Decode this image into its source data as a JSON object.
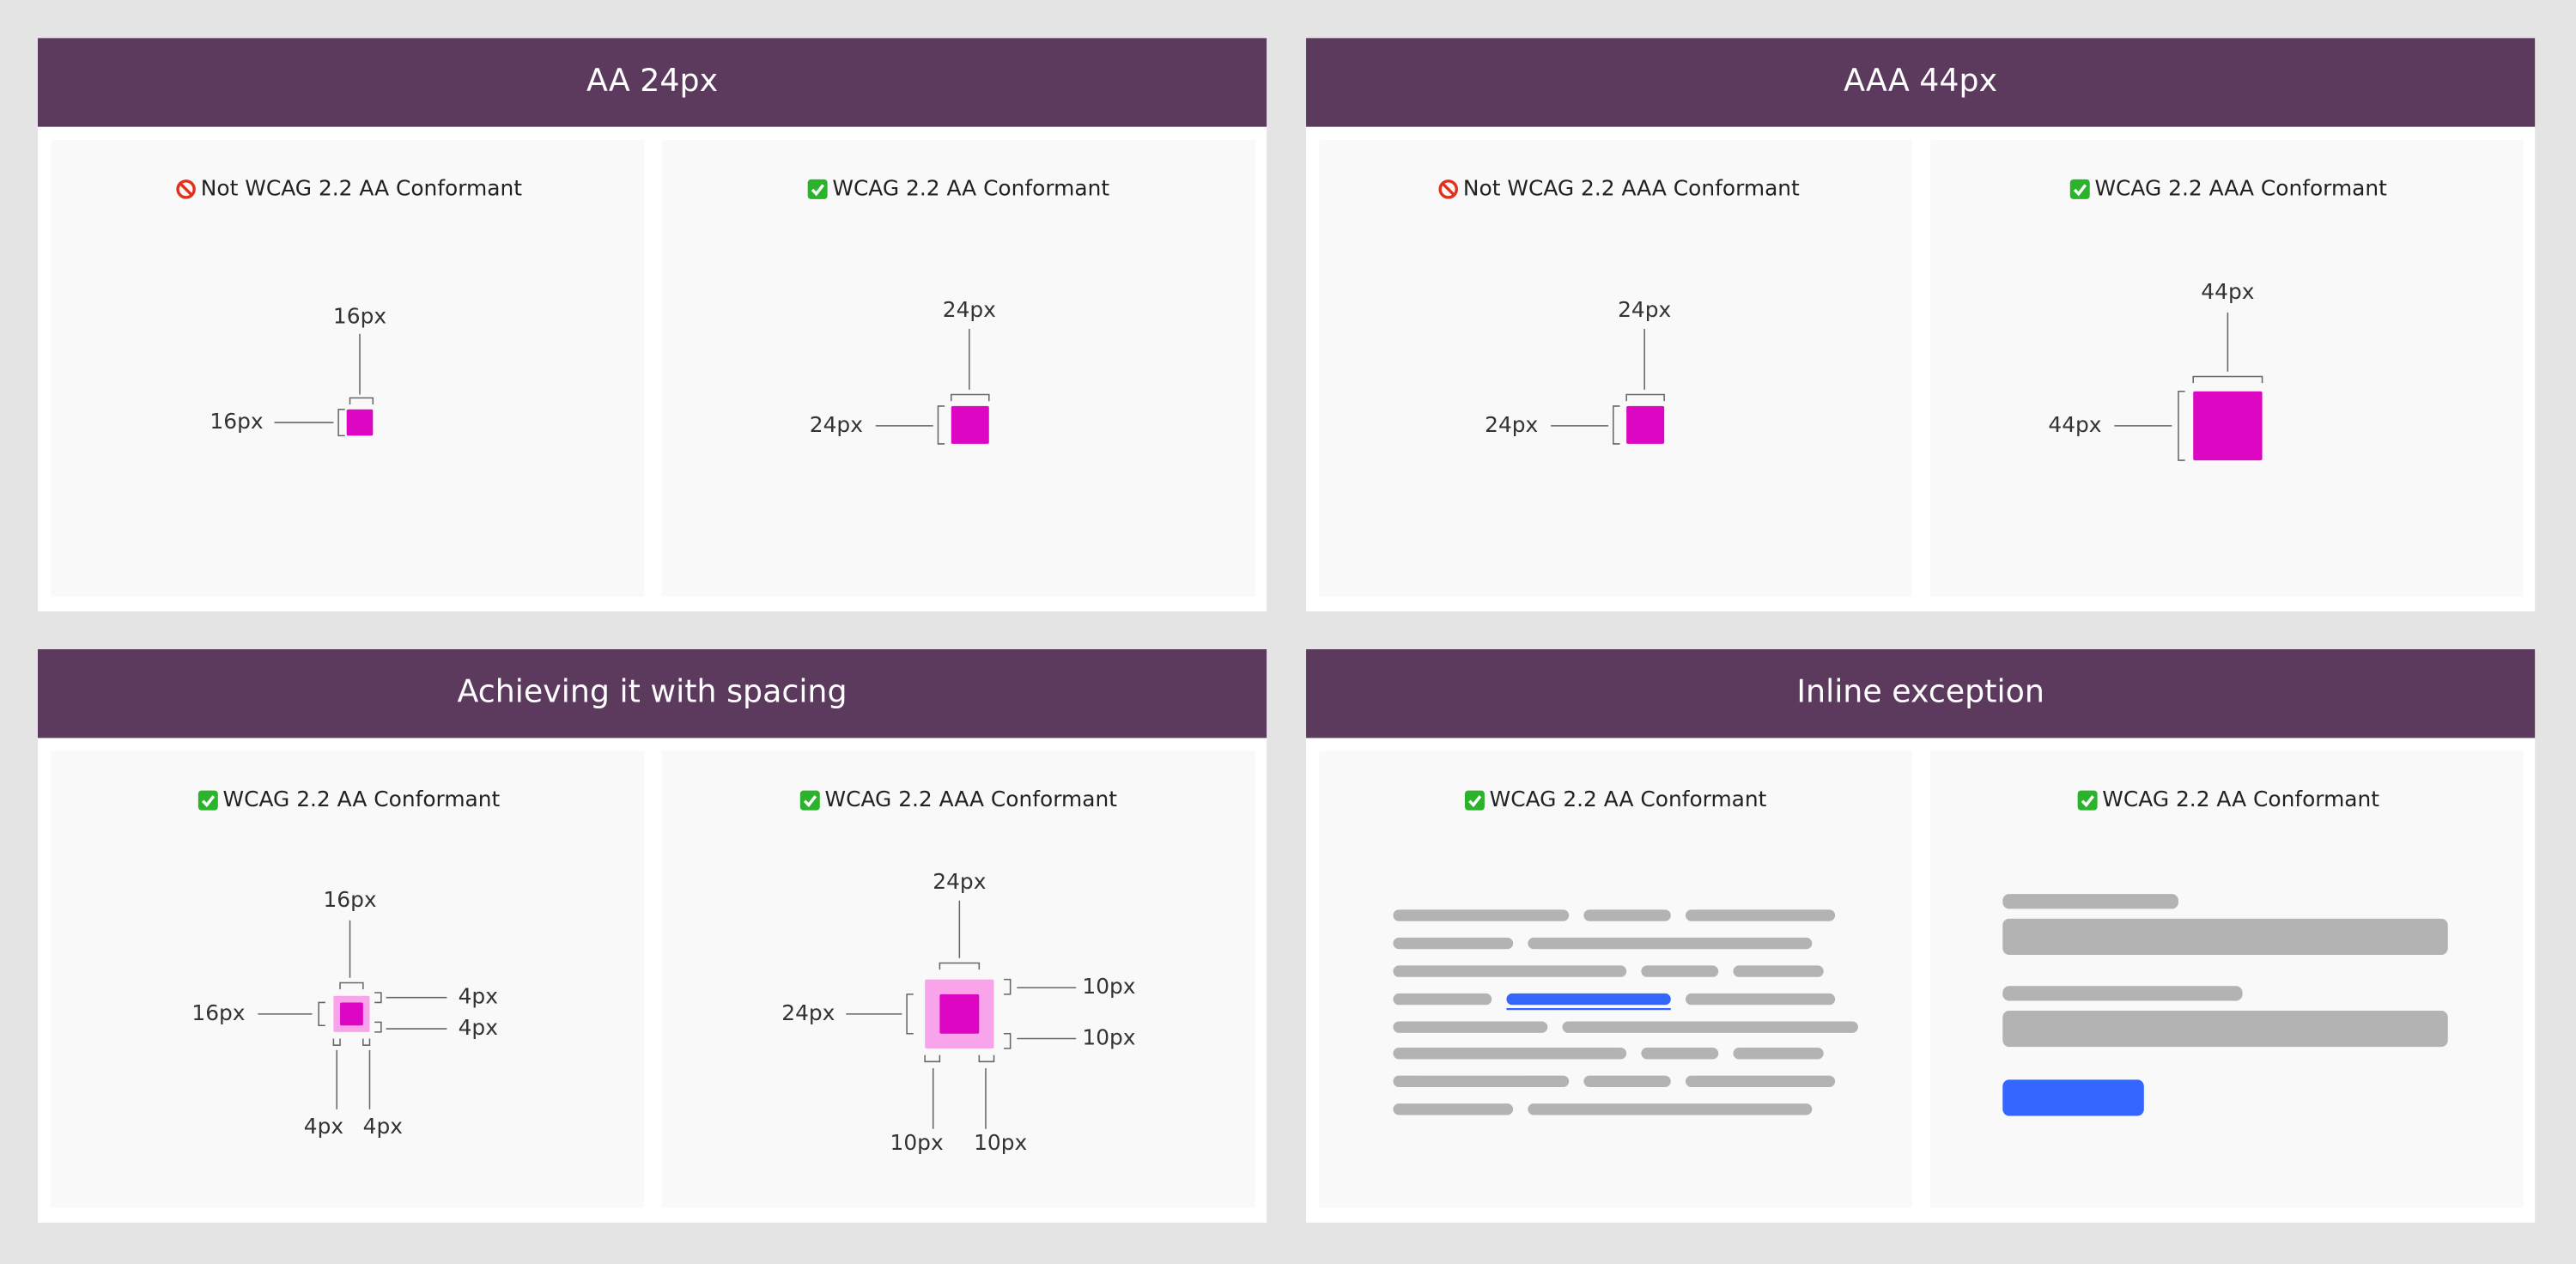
{
  "panels": [
    {
      "title": "AA 24px",
      "cards": [
        {
          "heading": "Not WCAG 2.2 AA Conformant",
          "labels": [
            "16px",
            "16px"
          ]
        },
        {
          "heading": "WCAG 2.2 AA Conformant",
          "labels": [
            "24px",
            "24px"
          ]
        }
      ]
    },
    {
      "title": "AAA 44px",
      "cards": [
        {
          "heading": "Not WCAG 2.2 AAA Conformant",
          "labels": [
            "24px",
            "24px"
          ]
        },
        {
          "heading": "WCAG 2.2 AAA Conformant",
          "labels": [
            "44px",
            "44px"
          ]
        }
      ]
    },
    {
      "title": "Achieving it with spacing",
      "cards": [
        {
          "heading": "WCAG 2.2 AA Conformant",
          "labels": [
            "16px",
            "16px",
            "4px",
            "4px",
            "4px",
            "4px"
          ]
        },
        {
          "heading": "WCAG 2.2 AAA Conformant",
          "labels": [
            "24px",
            "24px",
            "10px",
            "10px",
            "10px",
            "10px"
          ]
        }
      ]
    },
    {
      "title": "Inline exception",
      "cards": [
        {
          "heading": "WCAG 2.2 AA Conformant"
        },
        {
          "heading": "WCAG 2.2 AA Conformant"
        }
      ]
    }
  ]
}
